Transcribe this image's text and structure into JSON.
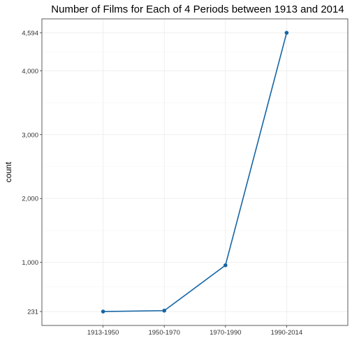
{
  "chart_data": {
    "type": "line",
    "title": "Number of Films for Each of 4 Periods between 1913 and 2014",
    "xlabel": "",
    "ylabel": "count",
    "categories": [
      "1913-1950",
      "1950-1970",
      "1970-1990",
      "1990-2014"
    ],
    "values": [
      231,
      245,
      955,
      4594
    ],
    "yticks": [
      231,
      1000,
      2000,
      3000,
      4000,
      4594
    ],
    "ytick_labels": [
      "231",
      "1,000",
      "2,000",
      "3,000",
      "4,000",
      "4,594"
    ],
    "ylim": [
      231,
      4594
    ],
    "grid": true,
    "legend": "none",
    "line_color": "#1465a5"
  }
}
